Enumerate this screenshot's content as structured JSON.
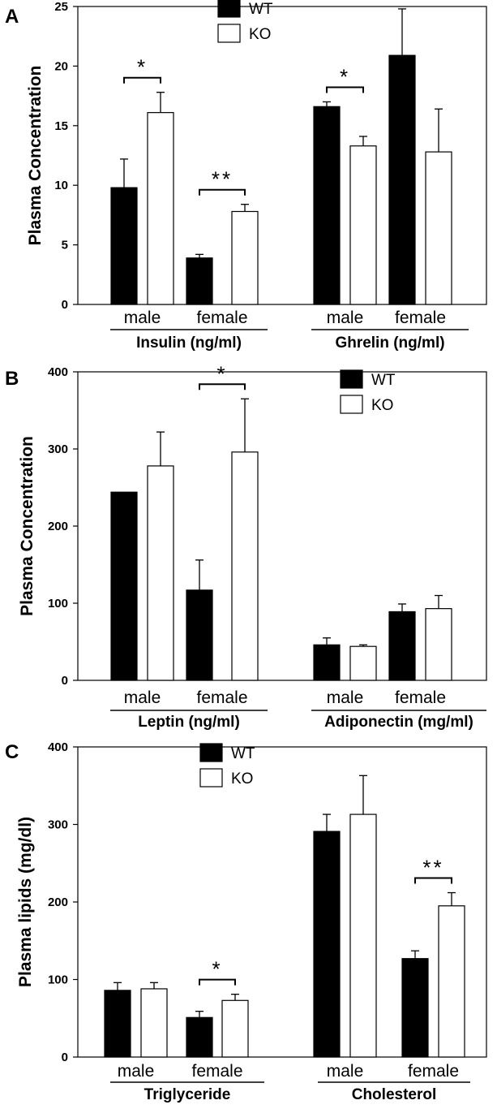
{
  "chart_data": [
    {
      "panel": "A",
      "type": "bar",
      "ylabel": "Plasma Concentration",
      "ylim": [
        0,
        25
      ],
      "yticks": [
        0,
        5,
        10,
        15,
        20,
        25
      ],
      "legend": {
        "position": "top-center",
        "entries": [
          "WT",
          "KO"
        ]
      },
      "groups": [
        {
          "label": "Insulin (ng/ml)",
          "subgroups": [
            {
              "label": "male",
              "wt": 9.8,
              "wt_err": 2.4,
              "ko": 16.1,
              "ko_err": 1.7,
              "sig": "*"
            },
            {
              "label": "female",
              "wt": 3.9,
              "wt_err": 0.3,
              "ko": 7.8,
              "ko_err": 0.6,
              "sig": "**"
            }
          ]
        },
        {
          "label": "Ghrelin (ng/ml)",
          "subgroups": [
            {
              "label": "male",
              "wt": 16.6,
              "wt_err": 0.4,
              "ko": 13.3,
              "ko_err": 0.8,
              "sig": "*"
            },
            {
              "label": "female",
              "wt": 20.9,
              "wt_err": 3.9,
              "ko": 12.8,
              "ko_err": 3.6,
              "sig": "*"
            }
          ]
        }
      ]
    },
    {
      "panel": "B",
      "type": "bar",
      "ylabel": "Plasma Concentration",
      "ylim": [
        0,
        400
      ],
      "yticks": [
        0,
        100,
        200,
        300,
        400
      ],
      "legend": {
        "position": "top-right",
        "entries": [
          "WT",
          "KO"
        ]
      },
      "groups": [
        {
          "label": "Leptin (ng/ml)",
          "subgroups": [
            {
              "label": "male",
              "wt": 244,
              "wt_err": 0,
              "ko": 278,
              "ko_err": 44,
              "sig": ""
            },
            {
              "label": "female",
              "wt": 117,
              "wt_err": 39,
              "ko": 296,
              "ko_err": 69,
              "sig": "*"
            }
          ]
        },
        {
          "label": "Adiponectin (mg/ml)",
          "subgroups": [
            {
              "label": "male",
              "wt": 46,
              "wt_err": 9,
              "ko": 44,
              "ko_err": 2,
              "sig": ""
            },
            {
              "label": "female",
              "wt": 89,
              "wt_err": 10,
              "ko": 93,
              "ko_err": 17,
              "sig": ""
            }
          ]
        }
      ]
    },
    {
      "panel": "C",
      "type": "bar",
      "ylabel": "Plasma lipids (mg/dl)",
      "ylim": [
        0,
        400
      ],
      "yticks": [
        0,
        100,
        200,
        300,
        400
      ],
      "legend": {
        "position": "top-left",
        "entries": [
          "WT",
          "KO"
        ]
      },
      "groups": [
        {
          "label": "Triglyceride",
          "subgroups": [
            {
              "label": "male",
              "wt": 86,
              "wt_err": 10,
              "ko": 88,
              "ko_err": 8,
              "sig": ""
            },
            {
              "label": "female",
              "wt": 51,
              "wt_err": 8,
              "ko": 73,
              "ko_err": 8,
              "sig": "*"
            }
          ]
        },
        {
          "label": "Cholesterol",
          "subgroups": [
            {
              "label": "male",
              "wt": 291,
              "wt_err": 22,
              "ko": 313,
              "ko_err": 50,
              "sig": ""
            },
            {
              "label": "female",
              "wt": 127,
              "wt_err": 10,
              "ko": 195,
              "ko_err": 17,
              "sig": "**"
            }
          ]
        }
      ]
    }
  ],
  "colors": {
    "wt_fill": "#000000",
    "ko_fill": "#ffffff",
    "stroke": "#000000"
  }
}
